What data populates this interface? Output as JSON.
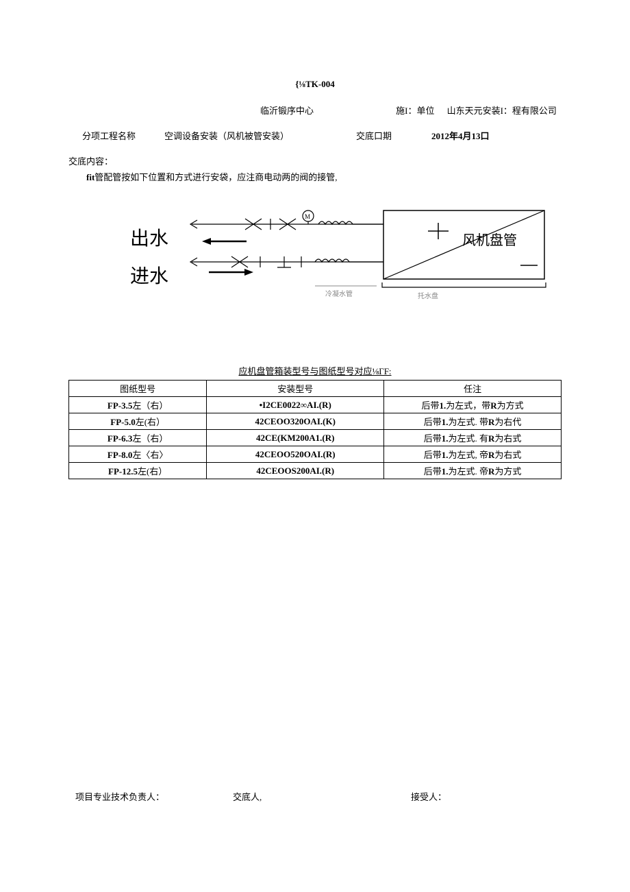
{
  "doc_code": "{⅛TK-004",
  "header": {
    "center": "临沂锻序中心",
    "unit_label": "施I：单位",
    "unit_value": "山东天元安装I：程有限公司",
    "project_label": "分项工程名称",
    "project_value": "空调设备安装（风机被管安装）",
    "date_label": "交底口期",
    "date_value": "2012年4月13口"
  },
  "content": {
    "label": "交底内容：",
    "text_prefix": "fit",
    "text_rest": "管配管按如下位置和方式进行安袋，应注商电动两的阀的接管,"
  },
  "diagram": {
    "out_water": "出水",
    "in_water": "进水",
    "fan_coil": "风机盘管",
    "cold_pipe": "冷凝水管",
    "tray": "托水盘"
  },
  "table": {
    "caption": "应机盘管箱装型号与图纸型号对应⅛ΓF:",
    "columns": [
      "图纸型号",
      "安装型号",
      "任注"
    ],
    "rows": [
      {
        "c1_bold": "FP-3.5",
        "c1_rest": "左（右）",
        "c2": "•I2CE0022∞AI.(R)",
        "c3_pre": "后带",
        "c3_b1": "1.",
        "c3_mid": "为左式，带",
        "c3_b2": "R",
        "c3_end": "为方式"
      },
      {
        "c1_bold": "FP-5.0",
        "c1_rest": "左(右）",
        "c2": "42CEOO320OAI.(K)",
        "c3_pre": "后带",
        "c3_b1": "1.",
        "c3_mid": "为左式. 带",
        "c3_b2": "R",
        "c3_end": "为右代"
      },
      {
        "c1_bold": "FP-6.3",
        "c1_rest": "左（右）",
        "c2": "42CE(KM200A1.(R)",
        "c3_pre": "后带",
        "c3_b1": "1.",
        "c3_mid": "为左式. 有",
        "c3_b2": "R",
        "c3_end": "为右式"
      },
      {
        "c1_bold": "FP-8.0",
        "c1_rest": "左〈右〉",
        "c2": "42CEOO520OAI.(R)",
        "c3_pre": "后带",
        "c3_b1": "1.",
        "c3_mid": "为左式, 帝",
        "c3_b2": "R",
        "c3_end": "为右式"
      },
      {
        "c1_bold": "FP-12.5",
        "c1_rest": "左(右）",
        "c2": "42CEOOS200AI.(R)",
        "c3_pre": "后带",
        "c3_b1": "1.",
        "c3_mid": "为左式. 帝",
        "c3_b2": "R",
        "c3_end": "为方式"
      }
    ]
  },
  "signatures": {
    "tech_lead": "项目专业技术负责人：",
    "handover": "交底人,",
    "receiver": "接受人："
  },
  "colors": {
    "text": "#000000",
    "background": "#ffffff",
    "border": "#000000",
    "diagram_gray": "#888888"
  }
}
